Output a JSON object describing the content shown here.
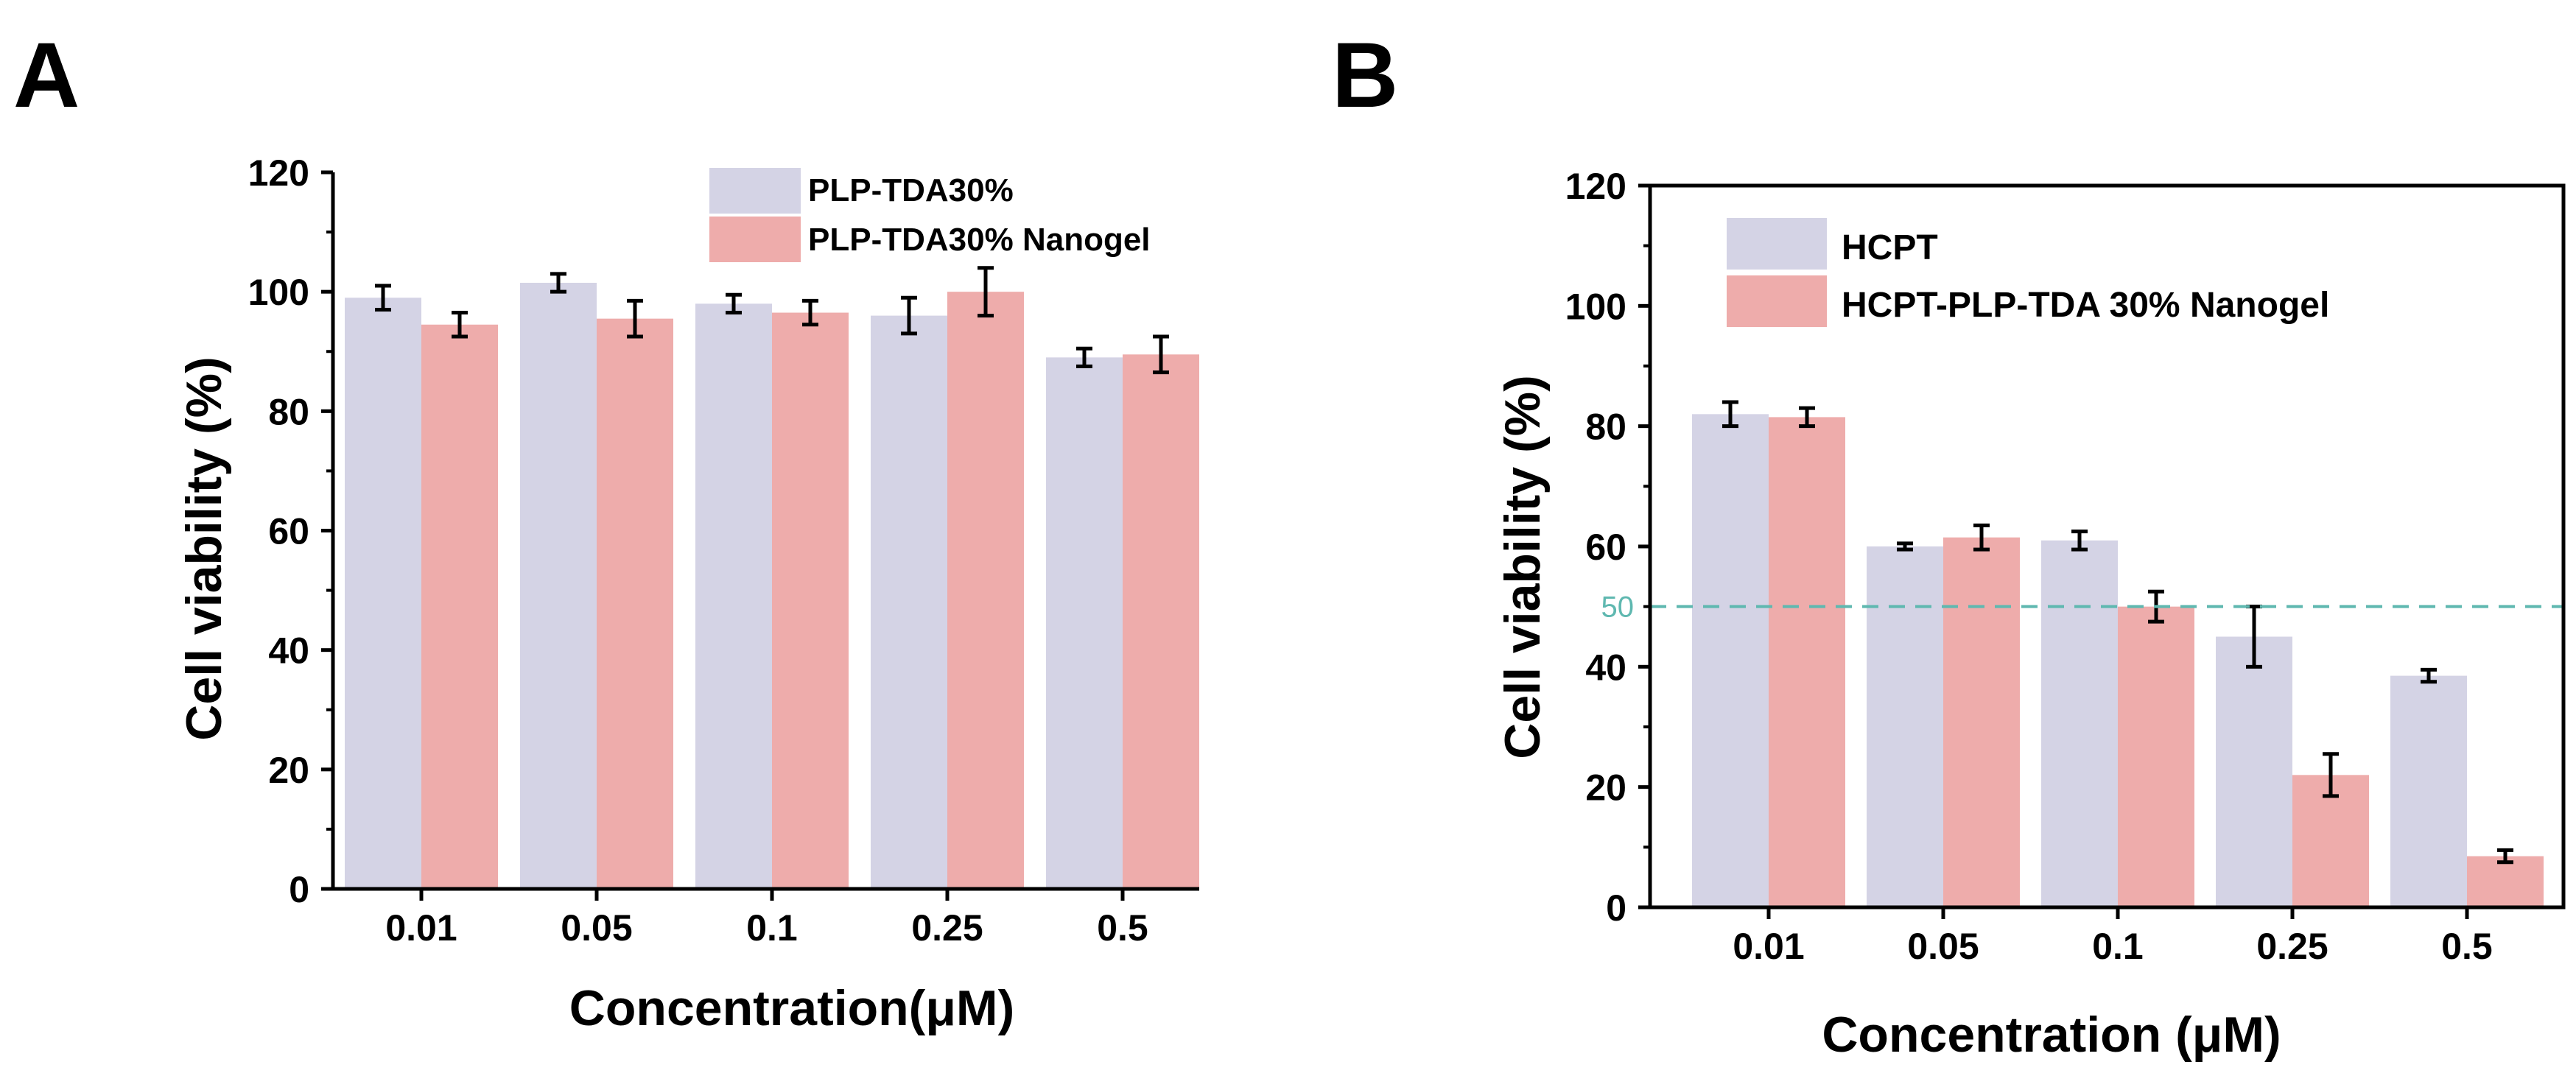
{
  "colors": {
    "series1": "#d4d3e5",
    "series2": "#eeacab",
    "reference": "#5fb8b0",
    "axis": "#000000"
  },
  "chart_data": [
    {
      "panel_label": "A",
      "type": "bar",
      "categories": [
        "0.01",
        "0.05",
        "0.1",
        "0.25",
        "0.5"
      ],
      "series": [
        {
          "name": "PLP-TDA30%",
          "values": [
            99,
            101.5,
            98,
            96,
            89
          ],
          "errors": [
            2,
            1.5,
            1.5,
            3,
            1.5
          ]
        },
        {
          "name": "PLP-TDA30% Nanogel",
          "values": [
            94.5,
            95.5,
            96.5,
            100,
            89.5
          ],
          "errors": [
            2,
            3,
            2,
            4,
            3
          ]
        }
      ],
      "title": "",
      "xlabel": "Concentration(μM)",
      "ylabel": "Cell viability (%)",
      "ylim": [
        0,
        120
      ],
      "yticks": [
        "0",
        "20",
        "40",
        "60",
        "80",
        "100",
        "120"
      ],
      "grid": false,
      "legend_position": "top-right",
      "frame": "open"
    },
    {
      "panel_label": "B",
      "type": "bar",
      "categories": [
        "0.01",
        "0.05",
        "0.1",
        "0.25",
        "0.5"
      ],
      "series": [
        {
          "name": "HCPT",
          "values": [
            82,
            60,
            61,
            45,
            38.5
          ],
          "errors": [
            2,
            0.5,
            1.5,
            5,
            1
          ]
        },
        {
          "name": "HCPT-PLP-TDA 30% Nanogel",
          "values": [
            81.5,
            61.5,
            50,
            22,
            8.5
          ],
          "errors": [
            1.5,
            2,
            2.5,
            3.5,
            1
          ]
        }
      ],
      "title": "",
      "xlabel": "Concentration (μM)",
      "ylabel": "Cell viability (%)",
      "ylim": [
        0,
        120
      ],
      "yticks": [
        "0",
        "20",
        "40",
        "60",
        "80",
        "100",
        "120"
      ],
      "grid": false,
      "legend_position": "top-left",
      "frame": "box",
      "reference_line": {
        "value": 50,
        "label": "50",
        "style": "dashed"
      }
    }
  ]
}
